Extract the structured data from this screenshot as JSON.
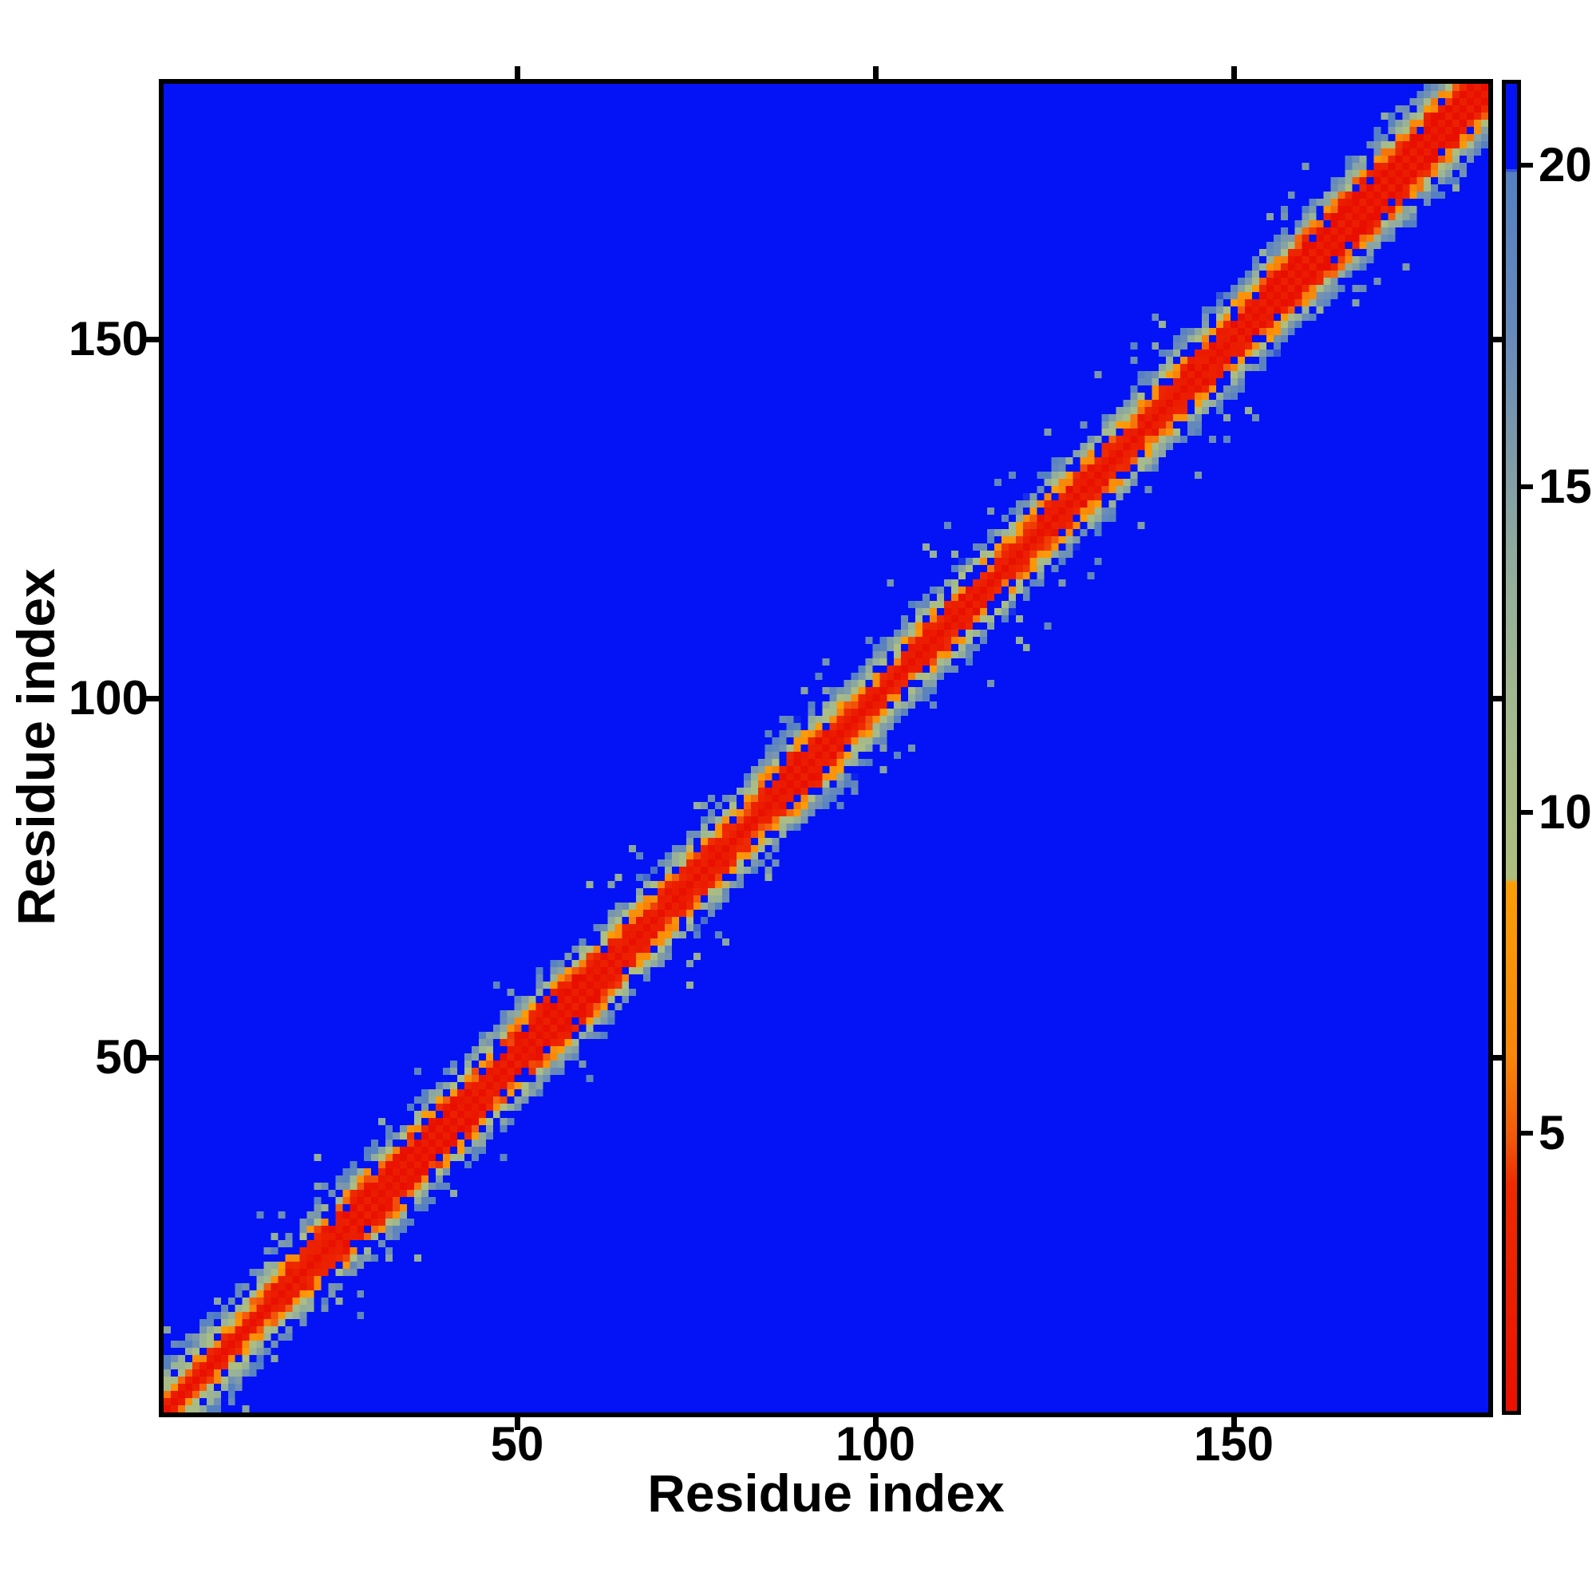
{
  "figure": {
    "background_color": "#ffffff",
    "axis_color": "#000000",
    "heatmap_background_blue": "#0413f5"
  },
  "chart_data": {
    "type": "heatmap",
    "title": "",
    "xlabel": "Residue index",
    "ylabel": "Residue index",
    "x_ticks": [
      "50",
      "100",
      "150"
    ],
    "x_tick_values": [
      50,
      100,
      150
    ],
    "y_ticks": [
      "150",
      "100",
      "50"
    ],
    "y_tick_values": [
      150,
      100,
      50
    ],
    "axis_range": [
      1,
      185
    ],
    "n_residues": 185,
    "grid": false,
    "legend_position": "colorbar-right",
    "description": "Symmetric residue-residue distance map: red band along the main diagonal (short distances), orange flanks, speckled sage/slate contact clouds near the diagonal, uniform blue elsewhere (distance above colorbar maximum).",
    "colorbar": {
      "ticks": [
        "5",
        "10",
        "15",
        "20"
      ],
      "tick_values": [
        5,
        10,
        15,
        20
      ],
      "vmin": 0.7,
      "vmax": 21.3,
      "colormap_stops": [
        [
          0.0,
          "#e80c00"
        ],
        [
          4.2,
          "#ee2a00"
        ],
        [
          4.9,
          "#f2570b"
        ],
        [
          6.2,
          "#f8860a"
        ],
        [
          8.9,
          "#fb9e07"
        ],
        [
          8.95,
          "#aebe7e"
        ],
        [
          11.0,
          "#a6bb8b"
        ],
        [
          13.5,
          "#95af9a"
        ],
        [
          15.5,
          "#7f9ba8"
        ],
        [
          17.5,
          "#6689bb"
        ],
        [
          19.95,
          "#5480c2"
        ],
        [
          20.0,
          "#0413f5"
        ],
        [
          22.0,
          "#0413f5"
        ]
      ]
    },
    "matrix_model": {
      "seed": 42,
      "diag_value": 0.5,
      "near_diag_value": 2.4,
      "base_offset": 3.0,
      "slope": 3.0,
      "noise": 4.6,
      "hole_prob": 0.22,
      "outlier_prob": 0.05,
      "outlier_max_sep": 14,
      "background_value": 22,
      "clusters": [
        {
          "center": 20,
          "span": 5,
          "cloud": 2.5,
          "orange": 0.8
        },
        {
          "center": 31,
          "span": 6,
          "cloud": 3.5,
          "orange": 2.2
        },
        {
          "center": 42,
          "span": 5,
          "cloud": 3.0,
          "orange": 0.8
        },
        {
          "center": 56,
          "span": 7,
          "cloud": 5.0,
          "orange": 2.6
        },
        {
          "center": 74,
          "span": 5,
          "cloud": 3.0,
          "orange": 0.6
        },
        {
          "center": 89,
          "span": 5,
          "cloud": 3.5,
          "orange": 3.0
        },
        {
          "center": 110,
          "span": 5,
          "cloud": 2.5,
          "orange": 1.0
        },
        {
          "center": 127,
          "span": 6,
          "cloud": 3.0,
          "orange": 1.4
        },
        {
          "center": 146,
          "span": 6,
          "cloud": 3.2,
          "orange": 1.2
        },
        {
          "center": 163,
          "span": 8,
          "cloud": 4.0,
          "orange": 3.4
        },
        {
          "center": 179,
          "span": 7,
          "cloud": 5.0,
          "orange": 1.0
        }
      ]
    }
  }
}
